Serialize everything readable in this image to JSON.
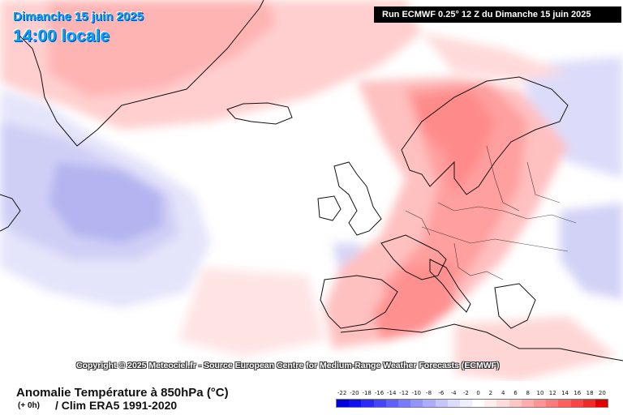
{
  "header": {
    "date": "Dimanche 15 juin 2025",
    "time": "14:00 locale",
    "run": "Run ECMWF 0.25° 12 Z du Dimanche 15 juin 2025"
  },
  "map": {
    "copyright": "Copyright © 2025 Meteociel.fr - Source European Centre for Medium-Range Weather Forecasts (ECMWF)"
  },
  "footer": {
    "title": "Anomalie Température à 850hPa (°C)",
    "offset": "(+ 0h)",
    "clim": "/ Clim ERA5 1991-2020"
  },
  "legend": {
    "labels": [
      "-22",
      "-20",
      "-18",
      "-16",
      "-14",
      "-12",
      "-10",
      "-8",
      "-6",
      "-4",
      "-2",
      "0",
      "2",
      "4",
      "6",
      "8",
      "10",
      "12",
      "14",
      "16",
      "18",
      "20"
    ],
    "colors": [
      "#0000e0",
      "#1010ee",
      "#2a2af5",
      "#4545f8",
      "#5f5ffa",
      "#7a7afc",
      "#9494fd",
      "#adadfe",
      "#c6c6ff",
      "#dcdcff",
      "#eeeeff",
      "#ffffff",
      "#ffeeee",
      "#ffdcdc",
      "#ffc6c6",
      "#ffadad",
      "#ff9494",
      "#ff7a7a",
      "#ff5f5f",
      "#f84545",
      "#f02a2a",
      "#e00000"
    ]
  },
  "colors": {
    "title_blue": "#00a6ff",
    "warm_anomaly": "#ff9a9a",
    "cold_anomaly": "#b4b4f4"
  }
}
